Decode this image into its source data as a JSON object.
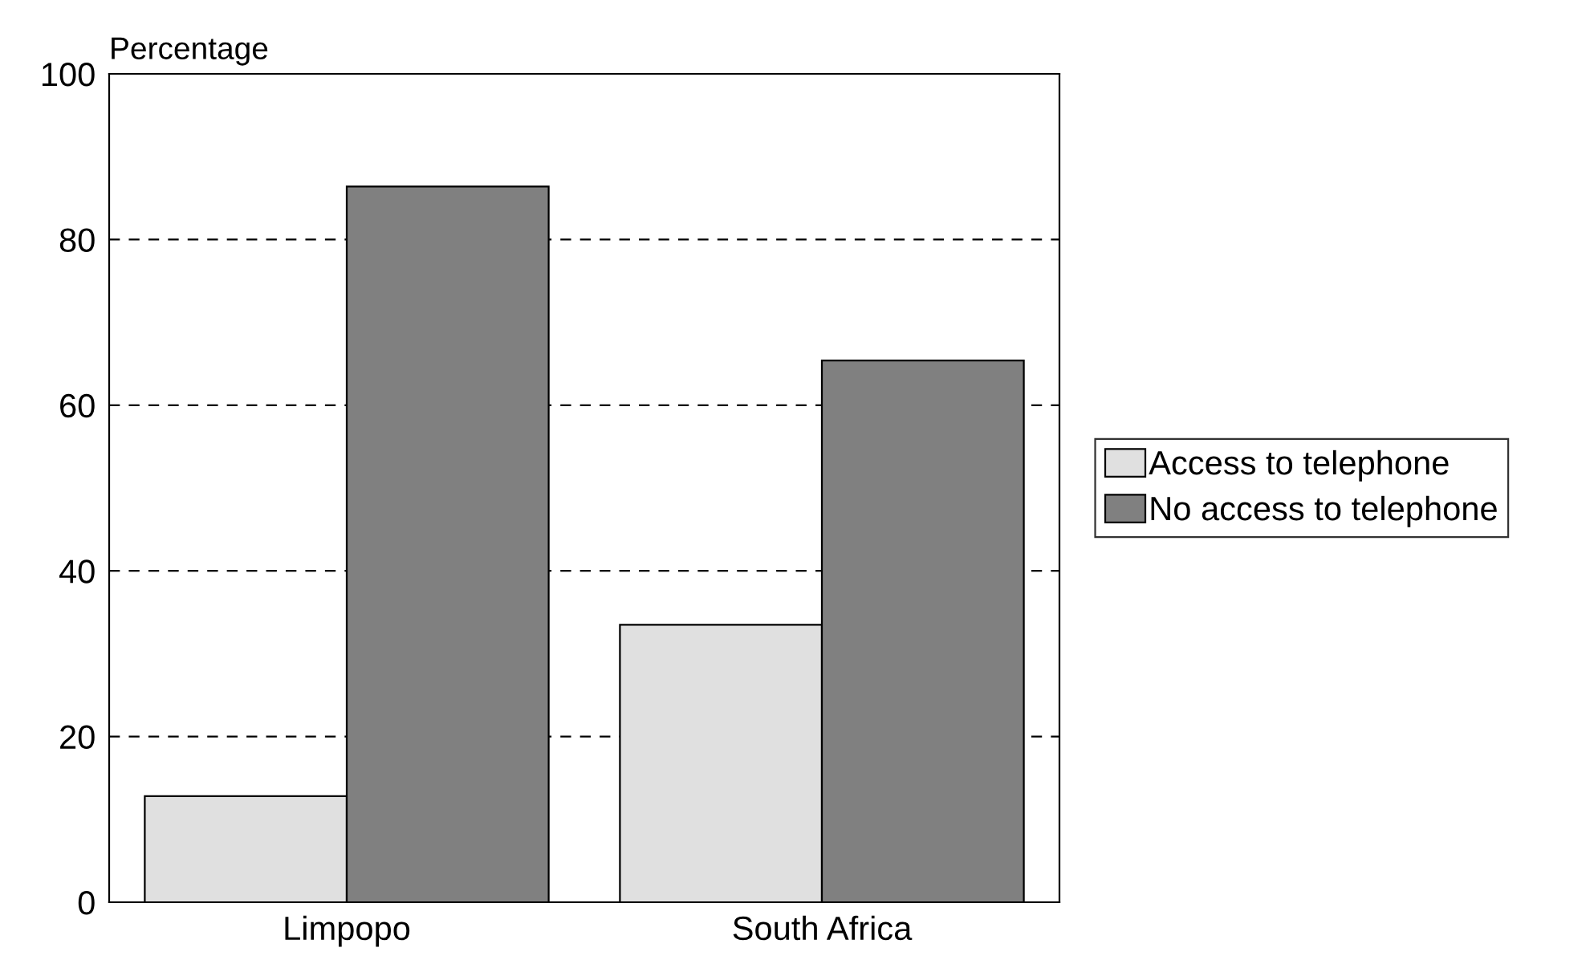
{
  "chart_data": {
    "type": "bar",
    "ylabel": "Percentage",
    "categories": [
      "Limpopo",
      "South Africa"
    ],
    "series": [
      {
        "name": "Access to telephone",
        "color": "#e0e0e0",
        "values": [
          12.8,
          33.5
        ]
      },
      {
        "name": "No access to telephone",
        "color": "#808080",
        "values": [
          86.4,
          65.4
        ]
      }
    ],
    "ylim": [
      0,
      100
    ],
    "yticks": [
      0,
      20,
      40,
      60,
      80,
      100
    ],
    "grid": "y",
    "legend": "right"
  }
}
